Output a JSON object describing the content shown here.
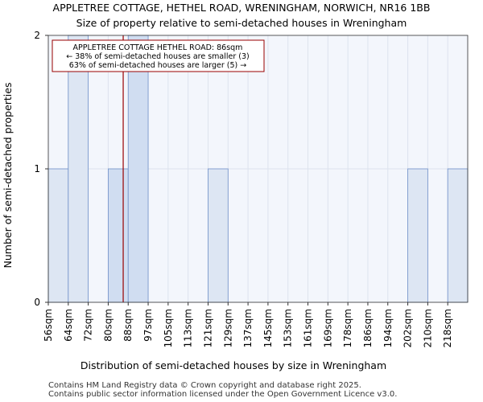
{
  "chart_data": {
    "type": "bar",
    "title": "APPLETREE COTTAGE, HETHEL ROAD, WRENINGHAM, NORWICH, NR16 1BB",
    "subtitle": "Size of property relative to semi-detached houses in Wreningham",
    "xlabel": "Distribution of semi-detached houses by size in Wreningham",
    "ylabel": "Number of semi-detached properties",
    "categories": [
      "56sqm",
      "64sqm",
      "72sqm",
      "80sqm",
      "88sqm",
      "97sqm",
      "105sqm",
      "113sqm",
      "121sqm",
      "129sqm",
      "137sqm",
      "145sqm",
      "153sqm",
      "161sqm",
      "169sqm",
      "178sqm",
      "186sqm",
      "194sqm",
      "202sqm",
      "210sqm",
      "218sqm"
    ],
    "values": [
      1,
      2,
      0,
      1,
      2,
      0,
      0,
      0,
      1,
      0,
      0,
      0,
      0,
      0,
      0,
      0,
      0,
      0,
      1,
      0,
      1
    ],
    "highlight": [
      false,
      false,
      false,
      true,
      true,
      false,
      false,
      false,
      false,
      false,
      false,
      false,
      false,
      false,
      false,
      false,
      false,
      false,
      false,
      false,
      false
    ],
    "ylim": [
      0,
      2
    ],
    "yticks": [
      "0",
      "1",
      "2"
    ],
    "grid": true,
    "marker": {
      "value": 86,
      "label": "APPLETREE COTTAGE HETHEL ROAD: 86sqm"
    },
    "annotation": [
      "APPLETREE COTTAGE HETHEL ROAD: 86sqm",
      "← 38% of semi-detached houses are smaller (3)",
      "63% of semi-detached houses are larger (5) →"
    ],
    "colors": {
      "bar": "#dde6f3",
      "bar_highlight": "#d0ddf1",
      "bar_stroke": "#6f8fc8",
      "marker": "#990000",
      "grid": "#dde3ee"
    }
  },
  "footer": {
    "line1": "Contains HM Land Registry data © Crown copyright and database right 2025.",
    "line2": "Contains public sector information licensed under the Open Government Licence v3.0."
  }
}
